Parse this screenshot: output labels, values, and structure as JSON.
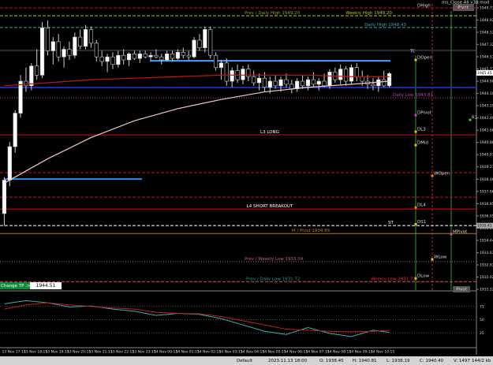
{
  "header": {
    "title": "ms_Close All v3d mod",
    "pivot_top": "Pivot",
    "pivot_bottom": "Pivot"
  },
  "panel": {
    "button": "Change TP :>>",
    "value": "1944.51"
  },
  "status_bar": [
    "Default",
    "2023.11.13 18:00",
    "O: 1938.45",
    "H: 1940.81",
    "L: 1938.19",
    "C: 1940.40",
    "V: 1497",
    "144/2 kb"
  ],
  "chart_data": [
    {
      "type": "candlestick",
      "categories": [
        "13 Nov 17:15",
        null,
        null,
        null,
        "13 Nov 18:15",
        null,
        null,
        null,
        "13 Nov 19:15",
        null,
        null,
        null,
        "13 Nov 20:15",
        null,
        null,
        null,
        "13 Nov 21:15",
        null,
        null,
        null,
        "13 Nov 22:15",
        null,
        null,
        null,
        "13 Nov 23:15",
        null,
        null,
        null,
        "14 Nov 00:15",
        null,
        null,
        null,
        "14 Nov 01:15",
        null,
        null,
        null,
        "14 Nov 02:15",
        null,
        null,
        null,
        "14 Nov 03:15",
        null,
        null,
        null,
        "14 Nov 04:15",
        null,
        null,
        null,
        "14 Nov 05:15",
        null,
        null,
        null,
        "14 Nov 06:15",
        null,
        null,
        null,
        "14 Nov 07:15",
        null,
        null,
        null,
        "14 Nov 08:15",
        null,
        null,
        null,
        "14 Nov 09:15",
        null,
        null,
        null,
        "14 Nov 10:15",
        null,
        null,
        null
      ],
      "open": [
        1936.2,
        1938.4,
        1940.6,
        1942.8,
        1944.9,
        1944.6,
        1945.9,
        1945.3,
        1948.4,
        1946.9,
        1947.5,
        1946.5,
        1947.0,
        1946.6,
        1947.8,
        1947.2,
        1948.3,
        1947.4,
        1946.5,
        1946.2,
        1946.5,
        1946.0,
        1946.6,
        1946.3,
        1946.7,
        1946.4,
        1946.7,
        1946.5,
        1946.6,
        1946.5,
        1946.3,
        1946.7,
        1946.4,
        1946.8,
        1946.6,
        1946.5,
        1947.6,
        1947.1,
        1948.3,
        1946.6,
        1945.8,
        1946.1,
        1944.9,
        1945.6,
        1945.0,
        1945.7,
        1945.2,
        1944.8,
        1945.1,
        1944.5,
        1944.9,
        1944.6,
        1945.0,
        1944.7,
        1944.4,
        1944.9,
        1944.6,
        1945.0,
        1944.7,
        1944.9,
        1944.6,
        1945.5,
        1945.0,
        1945.7,
        1944.9,
        1945.8,
        1945.2,
        1944.9,
        1944.7,
        1944.6,
        1945.0,
        1944.6
      ],
      "high": [
        1938.6,
        1940.9,
        1943.0,
        1945.3,
        1945.8,
        1946.1,
        1947.0,
        1948.8,
        1948.9,
        1947.8,
        1948.0,
        1947.2,
        1947.5,
        1948.1,
        1948.3,
        1948.6,
        1948.5,
        1947.6,
        1946.9,
        1946.7,
        1946.8,
        1946.9,
        1947.0,
        1946.8,
        1946.9,
        1946.9,
        1946.9,
        1946.8,
        1947.0,
        1946.7,
        1946.9,
        1946.9,
        1947.0,
        1947.1,
        1946.9,
        1947.8,
        1948.0,
        1948.5,
        1948.5,
        1946.8,
        1946.3,
        1946.4,
        1945.8,
        1946.0,
        1945.9,
        1946.0,
        1945.6,
        1945.4,
        1945.5,
        1945.2,
        1945.3,
        1945.2,
        1945.4,
        1945.0,
        1945.1,
        1945.3,
        1945.2,
        1945.5,
        1945.1,
        1945.4,
        1945.7,
        1945.8,
        1946.0,
        1945.9,
        1946.0,
        1946.1,
        1945.6,
        1945.3,
        1945.1,
        1945.2,
        1945.6,
        1945.5
      ],
      "low": [
        1935.4,
        1938.0,
        1940.2,
        1942.5,
        1944.2,
        1944.3,
        1945.0,
        1945.1,
        1946.6,
        1946.0,
        1946.2,
        1945.8,
        1946.3,
        1946.4,
        1947.0,
        1947.0,
        1947.1,
        1946.2,
        1945.9,
        1945.5,
        1945.7,
        1945.8,
        1946.0,
        1945.9,
        1946.3,
        1946.1,
        1946.4,
        1946.3,
        1946.4,
        1946.0,
        1946.2,
        1946.2,
        1946.3,
        1946.4,
        1946.3,
        1946.4,
        1946.9,
        1946.8,
        1946.4,
        1945.6,
        1945.0,
        1944.6,
        1944.5,
        1944.8,
        1944.7,
        1944.9,
        1944.6,
        1944.3,
        1944.2,
        1944.1,
        1944.4,
        1944.2,
        1944.5,
        1944.1,
        1944.2,
        1944.4,
        1944.3,
        1944.5,
        1944.3,
        1944.5,
        1944.4,
        1944.8,
        1944.7,
        1944.6,
        1944.7,
        1944.9,
        1944.6,
        1944.4,
        1944.3,
        1944.2,
        1944.5,
        1944.5
      ],
      "close": [
        1938.4,
        1940.6,
        1942.8,
        1944.9,
        1944.6,
        1945.9,
        1945.3,
        1948.4,
        1946.9,
        1947.5,
        1946.5,
        1947.0,
        1946.6,
        1947.8,
        1947.2,
        1948.3,
        1947.4,
        1946.5,
        1946.2,
        1946.5,
        1946.0,
        1946.6,
        1946.3,
        1946.7,
        1946.4,
        1946.7,
        1946.5,
        1946.6,
        1946.5,
        1946.3,
        1946.7,
        1946.4,
        1946.8,
        1946.6,
        1946.5,
        1947.6,
        1947.1,
        1948.3,
        1946.6,
        1945.8,
        1946.1,
        1944.9,
        1945.6,
        1945.0,
        1945.7,
        1945.2,
        1944.8,
        1945.1,
        1944.5,
        1944.9,
        1944.6,
        1945.0,
        1944.7,
        1944.4,
        1944.9,
        1944.6,
        1945.0,
        1944.7,
        1944.9,
        1944.6,
        1945.5,
        1945.0,
        1945.7,
        1944.9,
        1945.8,
        1945.2,
        1944.9,
        1944.7,
        1944.6,
        1945.0,
        1944.6,
        1945.4
      ],
      "ylim": [
        1931.17,
        1949.98
      ],
      "yticks": [
        1931.22,
        1932.02,
        1932.83,
        1933.63,
        1934.44,
        1935.24,
        1936.05,
        1936.85,
        1937.66,
        1938.46,
        1939.27,
        1940.07,
        1940.88,
        1941.68,
        1942.49,
        1943.29,
        {
          "value": 1944.1,
          "label": "1944.10"
        },
        {
          "value": 1944.9,
          "label": "1944.90"
        },
        1945.71,
        1946.51,
        1947.32,
        1948.12,
        1948.92,
        1949.73
      ],
      "lines": [
        {
          "color": "#c01818",
          "x": [
            0,
            8,
            16,
            24,
            32,
            40,
            48,
            56,
            64,
            71
          ],
          "values": [
            1944.6,
            1944.8,
            1945.0,
            1945.1,
            1945.2,
            1945.3,
            1945.3,
            1945.3,
            1945.2,
            1945.2
          ]
        },
        {
          "color": "#f0c8c8",
          "x": [
            0,
            8,
            16,
            24,
            32,
            40,
            48,
            56,
            64,
            71
          ],
          "values": [
            1938.2,
            1939.8,
            1941.2,
            1942.3,
            1943.1,
            1943.7,
            1944.2,
            1944.5,
            1944.7,
            1944.9
          ]
        }
      ],
      "levels": [
        {
          "label": "Prev / Daily High 1949.20",
          "price": 1949.2,
          "color": "#9a9a3a",
          "style": "dashed"
        },
        {
          "label": "Weekly High 1949.20",
          "price": 1949.2,
          "color": "#c8c800",
          "style": "dashed"
        },
        {
          "label": "Daily High 1948.43",
          "price": 1948.43,
          "color": "#3aa8a8",
          "style": "dashed"
        },
        {
          "label": "Daily Low 1943.81",
          "price": 1943.81,
          "color": "#c040c0",
          "style": "dotted"
        },
        {
          "label": "L3 LONG",
          "price": 1941.37,
          "color": "#d01010",
          "style": "solid",
          "text_color": "#ffffff"
        },
        {
          "label": "L4 SHORT BREAKOUT",
          "price": 1936.5,
          "color": "#d01010",
          "style": "solid",
          "text_color": "#ffffff"
        },
        {
          "label": "M / Pivot 1934.89",
          "price": 1934.89,
          "color": "#c07a10",
          "style": "solid"
        },
        {
          "label": "Prev / Weekly Low 1933.04",
          "price": 1933.04,
          "color": "#c06080",
          "style": "dotted"
        },
        {
          "label": "Prev / Daily Low 1931.72",
          "price": 1931.72,
          "color": "#2a9a9a",
          "style": "dashed"
        },
        {
          "label": "Weekly Low 1931.72",
          "price": 1931.72,
          "color": "#e03030",
          "style": "dashed"
        },
        {
          "label": "ST",
          "price": 1935.41,
          "color": "#ffffff",
          "style": "dashed"
        }
      ],
      "plain_levels": [
        {
          "price": 1949.72,
          "color": "#c01818",
          "style": "dashed"
        },
        {
          "price": 1946.92,
          "color": "#4a5a7a",
          "style": "solid"
        },
        {
          "price": 1946.24,
          "color": "#4aa0ff",
          "style": "solid"
        },
        {
          "price": 1944.49,
          "color": "#1a2ab0",
          "style": "solid"
        },
        {
          "price": 1938.47,
          "color": "#3a8ae0",
          "style": "solid"
        },
        {
          "price": 1938.89,
          "color": "#c01818",
          "style": "dashed"
        },
        {
          "price": 1937.28,
          "color": "#c01818",
          "style": "dashed"
        }
      ],
      "markers": [
        {
          "name": "DHigh",
          "price": 1949.72,
          "color": "#ffffff"
        },
        {
          "name": "TC",
          "price": 1946.71,
          "color": "#ffffff"
        },
        {
          "name": "DOpen",
          "price": 1946.3,
          "color": "#e8c800"
        },
        {
          "name": "DPivot",
          "price": 1942.67,
          "color": "#d040d0"
        },
        {
          "name": "DL3",
          "price": 1941.58,
          "color": "#e8c800"
        },
        {
          "name": "DMid",
          "price": 1940.7,
          "color": "#e8c800"
        },
        {
          "name": "WOpen",
          "price": 1938.68,
          "color": "#e89000"
        },
        {
          "name": "DL4",
          "price": 1936.6,
          "color": "#e89000"
        },
        {
          "name": "DS1",
          "price": 1935.5,
          "color": "#e8c800"
        },
        {
          "name": "MPivot",
          "price": 1934.85,
          "color": "#d040d0"
        },
        {
          "name": "WLow",
          "price": 1933.19,
          "color": "#e8c800"
        },
        {
          "name": "DLow",
          "price": 1931.94,
          "color": "#e8c800"
        },
        {
          "name": "R1",
          "price": 1942.36,
          "color": "#20d040"
        }
      ],
      "price_labels": [
        1945.45,
        1935.41
      ]
    },
    {
      "type": "line",
      "x": [
        0,
        4,
        8,
        12,
        16,
        20,
        24,
        28,
        32,
        36,
        40,
        44,
        48,
        52,
        56,
        60,
        64,
        68,
        71
      ],
      "series": [
        {
          "color": "#3ab0b0",
          "values": [
            80,
            86,
            82,
            74,
            76,
            70,
            66,
            58,
            62,
            60,
            52,
            40,
            28,
            22,
            35,
            24,
            18,
            30,
            26
          ]
        },
        {
          "color": "#c02020",
          "values": [
            70,
            78,
            82,
            78,
            75,
            72,
            70,
            64,
            62,
            61,
            56,
            48,
            40,
            32,
            30,
            28,
            27,
            28,
            30
          ]
        }
      ],
      "ylim": [
        0,
        100
      ],
      "yticks": [
        25,
        50,
        75
      ],
      "grid": true
    }
  ]
}
